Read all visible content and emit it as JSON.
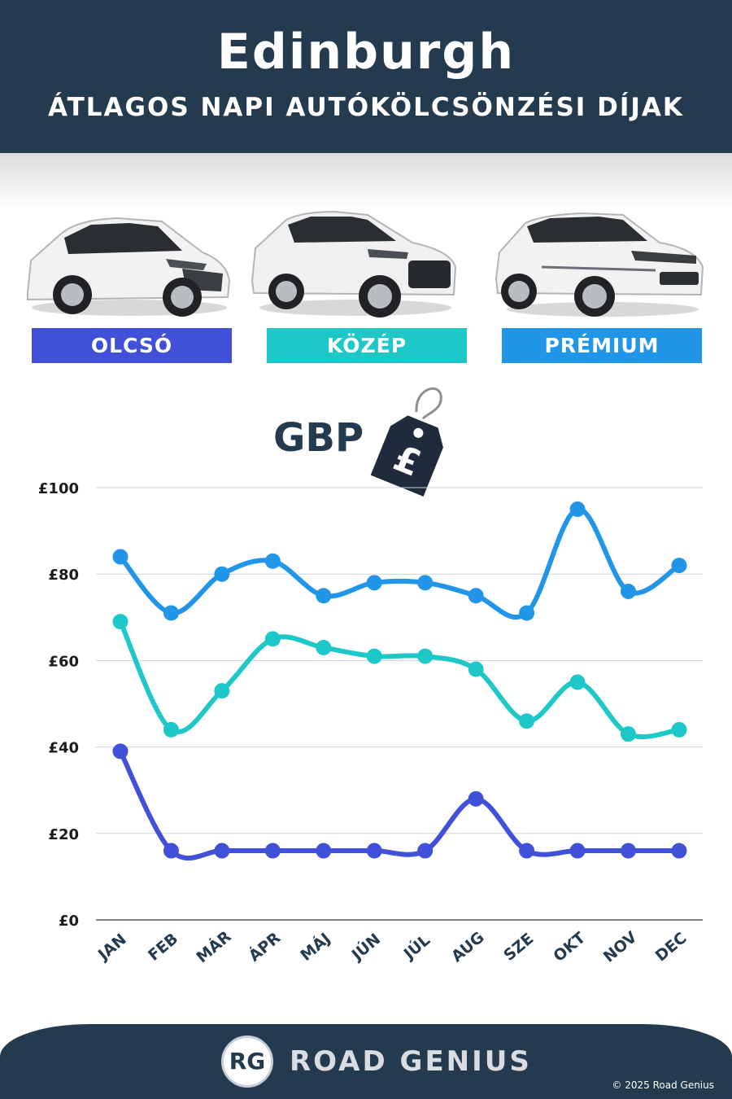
{
  "header": {
    "title": "Edinburgh",
    "subtitle": "ÁTLAGOS NAPI AUTÓKÖLCSÖNZÉSI DÍJAK"
  },
  "categories": [
    {
      "label": "OLCSÓ",
      "color": "#4150d8"
    },
    {
      "label": "KÖZÉP",
      "color": "#1ec8c8"
    },
    {
      "label": "PRÉMIUM",
      "color": "#2196e8"
    }
  ],
  "currency": {
    "label": "GBP",
    "symbol": "£"
  },
  "chart_data": {
    "type": "line",
    "categories": [
      "JAN",
      "FEB",
      "MÁR",
      "ÁPR",
      "MÁJ",
      "JÚN",
      "JÚL",
      "AUG",
      "SZE",
      "OKT",
      "NOV",
      "DEC"
    ],
    "series": [
      {
        "name": "PRÉMIUM",
        "color": "#2196e8",
        "values": [
          84,
          71,
          80,
          83,
          75,
          78,
          78,
          75,
          71,
          95,
          76,
          82
        ]
      },
      {
        "name": "KÖZÉP",
        "color": "#1ec8c8",
        "values": [
          69,
          44,
          53,
          65,
          63,
          61,
          61,
          58,
          46,
          55,
          43,
          44
        ]
      },
      {
        "name": "OLCSÓ",
        "color": "#4150d8",
        "values": [
          39,
          16,
          16,
          16,
          16,
          16,
          16,
          28,
          16,
          16,
          16,
          16
        ]
      }
    ],
    "yticks": [
      "£0",
      "£20",
      "£40",
      "£60",
      "£80",
      "£100"
    ],
    "ylim": [
      0,
      100
    ],
    "grid": true
  },
  "footer": {
    "logo_text": "RG",
    "brand": "ROAD GENIUS",
    "copyright": "© 2025 Road Genius"
  }
}
